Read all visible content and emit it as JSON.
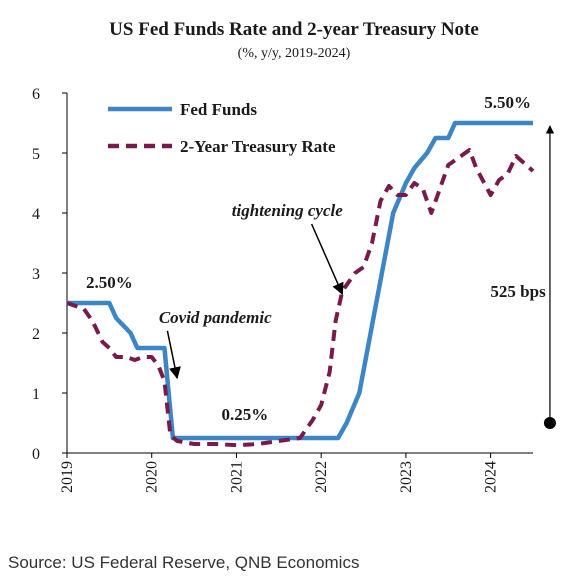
{
  "chart_data": {
    "type": "line",
    "title": "US Fed Funds Rate and 2-year Treasury Note",
    "subtitle": "(%, y/y, 2019-2024)",
    "xlabel": "",
    "ylabel": "",
    "xlim": [
      2019.0,
      2024.5
    ],
    "ylim": [
      0,
      6
    ],
    "x_ticks": [
      "2019",
      "2020",
      "2021",
      "2022",
      "2023",
      "2024"
    ],
    "y_ticks": [
      "0",
      "1",
      "2",
      "3",
      "4",
      "5",
      "6"
    ],
    "grid": false,
    "legend_position": "top-left",
    "series": [
      {
        "name": "Fed Funds",
        "style": "solid",
        "color": "#3d86c6",
        "points": [
          [
            2019.0,
            2.5
          ],
          [
            2019.5,
            2.5
          ],
          [
            2019.58,
            2.25
          ],
          [
            2019.75,
            2.0
          ],
          [
            2019.83,
            1.75
          ],
          [
            2020.15,
            1.75
          ],
          [
            2020.2,
            1.0
          ],
          [
            2020.25,
            0.25
          ],
          [
            2022.2,
            0.25
          ],
          [
            2022.3,
            0.5
          ],
          [
            2022.45,
            1.0
          ],
          [
            2022.55,
            1.75
          ],
          [
            2022.65,
            2.5
          ],
          [
            2022.75,
            3.25
          ],
          [
            2022.85,
            4.0
          ],
          [
            2023.0,
            4.5
          ],
          [
            2023.1,
            4.75
          ],
          [
            2023.25,
            5.0
          ],
          [
            2023.35,
            5.25
          ],
          [
            2023.5,
            5.25
          ],
          [
            2023.58,
            5.5
          ],
          [
            2024.5,
            5.5
          ]
        ]
      },
      {
        "name": "2-Year Treasury Rate",
        "style": "dashed",
        "color": "#7a1a4a",
        "points": [
          [
            2019.0,
            2.5
          ],
          [
            2019.2,
            2.4
          ],
          [
            2019.3,
            2.2
          ],
          [
            2019.42,
            1.85
          ],
          [
            2019.5,
            1.75
          ],
          [
            2019.58,
            1.6
          ],
          [
            2019.7,
            1.6
          ],
          [
            2019.8,
            1.55
          ],
          [
            2019.9,
            1.6
          ],
          [
            2020.0,
            1.6
          ],
          [
            2020.08,
            1.45
          ],
          [
            2020.15,
            1.2
          ],
          [
            2020.22,
            0.3
          ],
          [
            2020.3,
            0.2
          ],
          [
            2020.5,
            0.15
          ],
          [
            2020.75,
            0.15
          ],
          [
            2021.0,
            0.13
          ],
          [
            2021.25,
            0.15
          ],
          [
            2021.5,
            0.2
          ],
          [
            2021.75,
            0.25
          ],
          [
            2021.9,
            0.55
          ],
          [
            2022.0,
            0.8
          ],
          [
            2022.1,
            1.35
          ],
          [
            2022.17,
            2.2
          ],
          [
            2022.25,
            2.7
          ],
          [
            2022.4,
            3.0
          ],
          [
            2022.5,
            3.1
          ],
          [
            2022.6,
            3.5
          ],
          [
            2022.7,
            4.2
          ],
          [
            2022.8,
            4.45
          ],
          [
            2022.9,
            4.3
          ],
          [
            2023.0,
            4.3
          ],
          [
            2023.1,
            4.5
          ],
          [
            2023.2,
            4.4
          ],
          [
            2023.3,
            4.0
          ],
          [
            2023.4,
            4.4
          ],
          [
            2023.5,
            4.8
          ],
          [
            2023.6,
            4.9
          ],
          [
            2023.75,
            5.05
          ],
          [
            2023.83,
            4.75
          ],
          [
            2024.0,
            4.3
          ],
          [
            2024.1,
            4.55
          ],
          [
            2024.2,
            4.65
          ],
          [
            2024.3,
            4.95
          ],
          [
            2024.5,
            4.7
          ]
        ]
      }
    ],
    "annotations": [
      {
        "text": "2.50%",
        "style": "bold",
        "x": 2019.5,
        "y": 2.75
      },
      {
        "text": "0.25%",
        "style": "bold",
        "x": 2021.1,
        "y": 0.55
      },
      {
        "text": "5.50%",
        "style": "bold",
        "x": 2024.2,
        "y": 5.75
      },
      {
        "text": "Covid pandemic",
        "style": "bold-italic",
        "x": 2020.75,
        "y": 2.17,
        "arrow_to": [
          2020.3,
          1.25
        ]
      },
      {
        "text": "tightening cycle",
        "style": "bold-italic",
        "x": 2021.6,
        "y": 3.95,
        "arrow_to": [
          2022.25,
          2.65
        ]
      },
      {
        "text": "525 bps",
        "style": "bold",
        "x": 2024.65,
        "y": 2.6
      }
    ],
    "range_bracket": {
      "label": "525 bps",
      "x": 2024.7,
      "y_from": 0.5,
      "y_to": 5.5,
      "color": "#000000"
    }
  },
  "source": "Source: US Federal Reserve, QNB Economics"
}
